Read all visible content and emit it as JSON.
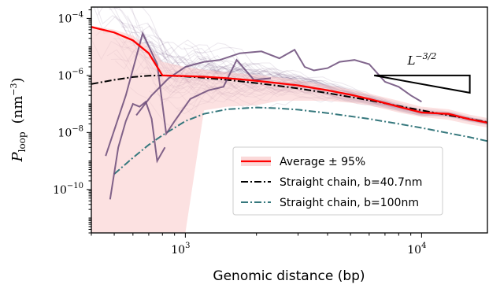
{
  "chart_data": {
    "type": "line",
    "xlabel": "Genomic distance (bp)",
    "ylabel": "P_loop (nm^-3)",
    "ylabel_parts": {
      "symbol": "P",
      "subscript": "loop",
      "unit_open": "(nm",
      "unit_exp": "−3",
      "unit_close": ")"
    },
    "x_scale": "log",
    "y_scale": "log",
    "xlim": [
      400,
      19000
    ],
    "ylim": [
      3e-12,
      0.00025
    ],
    "x_major_ticks": [
      {
        "value": 1000,
        "base": "10",
        "exp": "3"
      },
      {
        "value": 10000,
        "base": "10",
        "exp": "4"
      }
    ],
    "y_major_ticks": [
      {
        "value": 1e-10,
        "base": "10",
        "exp": "−10"
      },
      {
        "value": 1e-08,
        "base": "10",
        "exp": "−8"
      },
      {
        "value": 1e-06,
        "base": "10",
        "exp": "−6"
      },
      {
        "value": 0.0001,
        "base": "10",
        "exp": "−4"
      }
    ],
    "grid": false,
    "legend_position": "lower-right",
    "colors": {
      "average": "#ff0000",
      "ci_band": "#f9c9c9",
      "straight_40": "#000000",
      "straight_100": "#36787d",
      "samples": "#6a4a78",
      "slope": "#000000"
    },
    "series": [
      {
        "name": "Average ± 95%",
        "style": "solid",
        "x": [
          400,
          500,
          600,
          700,
          800,
          1000,
          1200,
          1500,
          2000,
          2500,
          3000,
          4000,
          5000,
          6000,
          8000,
          10000,
          13000,
          16000,
          19000
        ],
        "y": [
          5e-05,
          3.2e-05,
          1.7e-05,
          6e-06,
          1e-06,
          9.5e-07,
          9e-07,
          8e-07,
          6.5e-07,
          5.3e-07,
          4.5e-07,
          3e-07,
          2.1e-07,
          1.5e-07,
          8e-08,
          5e-08,
          4.5e-08,
          2.9e-08,
          2.2e-08
        ],
        "ci_upper": [
          5.5e-05,
          4e-05,
          2.5e-05,
          1e-05,
          3e-06,
          2e-06,
          1.6e-06,
          1.3e-06,
          1.05e-06,
          8.5e-07,
          7e-07,
          4.5e-07,
          3.2e-07,
          2.3e-07,
          1.3e-07,
          8e-08,
          6.5e-08,
          4.2e-08,
          3.2e-08
        ],
        "ci_lower": [
          3e-12,
          3e-12,
          3e-12,
          3e-12,
          3e-12,
          3e-12,
          6e-08,
          8e-08,
          9e-08,
          1.3e-07,
          1.3e-07,
          1.3e-07,
          1.1e-07,
          9e-08,
          5e-08,
          3.5e-08,
          2.8e-08,
          1.9e-08,
          1.5e-08
        ]
      },
      {
        "name": "Straight chain, b=40.7nm",
        "style": "dashdot",
        "x": [
          400,
          500,
          600,
          700,
          800,
          1000,
          1200,
          1500,
          2000,
          2500,
          3000,
          4000,
          5000,
          6000,
          8000,
          10000,
          13000,
          16000,
          19000
        ],
        "y": [
          5e-07,
          7e-07,
          8.8e-07,
          9.8e-07,
          1e-06,
          9.2e-07,
          8.3e-07,
          7e-07,
          5.4e-07,
          4.3e-07,
          3.5e-07,
          2.4e-07,
          1.75e-07,
          1.35e-07,
          8.5e-08,
          6e-08,
          4e-08,
          3e-08,
          2.3e-08
        ]
      },
      {
        "name": "Straight chain, b=100nm",
        "style": "dashdot",
        "x": [
          500,
          600,
          700,
          800,
          1000,
          1200,
          1500,
          2000,
          2500,
          3000,
          4000,
          5000,
          6000,
          8000,
          10000,
          13000,
          16000,
          19000
        ],
        "y": [
          3.5e-10,
          1.3e-09,
          3.7e-09,
          8e-09,
          2.5e-08,
          4.5e-08,
          6.5e-08,
          7.5e-08,
          7e-08,
          6.3e-08,
          4.8e-08,
          3.7e-08,
          3e-08,
          2e-08,
          1.45e-08,
          9.5e-09,
          6.8e-09,
          5e-09
        ]
      }
    ],
    "highlighted_samples": [
      {
        "x": [
          460,
          560,
          660,
          760,
          830,
          900,
          1050,
          1250,
          1450,
          1650,
          1950,
          2300
        ],
        "y": [
          1.5e-09,
          2e-07,
          3e-05,
          2.5e-06,
          9e-09,
          2.5e-08,
          1.5e-07,
          3e-07,
          4e-07,
          3.5e-06,
          7e-07,
          8e-07
        ]
      },
      {
        "x": [
          620,
          720,
          850,
          1000,
          1200,
          1400,
          1700,
          2100,
          2500,
          2900,
          3200,
          3500,
          4000,
          4500,
          5200,
          6000,
          7000,
          8000,
          9000,
          10000
        ],
        "y": [
          4e-08,
          2e-07,
          8e-07,
          2e-06,
          3e-06,
          3.5e-06,
          6e-06,
          7e-06,
          4e-06,
          8e-06,
          2e-06,
          1.5e-06,
          1.8e-06,
          3e-06,
          3.5e-06,
          2.5e-06,
          6e-07,
          4e-07,
          2e-07,
          1.2e-07
        ]
      },
      {
        "x": [
          480,
          520,
          560,
          600,
          640,
          680,
          720,
          760,
          820
        ],
        "y": [
          4.5e-11,
          3e-09,
          2.5e-08,
          1e-07,
          8e-08,
          1.2e-07,
          3e-08,
          1e-09,
          3e-09
        ]
      }
    ],
    "slope_annotation": {
      "label_base": "L",
      "label_exp": "−3/2",
      "exponent": -1.5,
      "x_start": 6300,
      "x_end": 16000,
      "y_start": 1e-06
    }
  }
}
